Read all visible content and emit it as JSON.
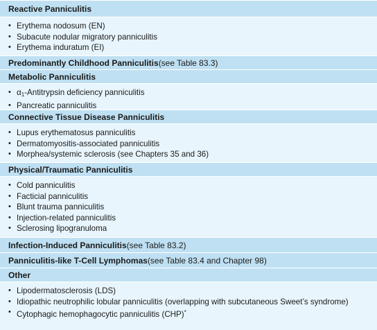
{
  "sections": [
    {
      "title": "Reactive Panniculitis",
      "note": "",
      "items": [
        "Erythema nodosum (EN)",
        "Subacute nodular migratory panniculitis",
        "Erythema induratum (EI)"
      ]
    },
    {
      "title": "Predominantly Childhood Panniculitis",
      "note": " (see Table 83.3)",
      "items": []
    },
    {
      "title": "Metabolic Panniculitis",
      "note": "",
      "items": [
        "α",
        "Pancreatic panniculitis"
      ],
      "alpha_item": {
        "greek": "α",
        "sub": "1",
        "text": "-Antitrypsin deficiency panniculitis"
      }
    },
    {
      "title": "Connective Tissue Disease Panniculitis",
      "note": "",
      "items": [
        "Lupus erythematosus panniculitis",
        "Dermatomyositis-associated panniculitis",
        "Morphea/systemic sclerosis (see Chapters 35 and 36)"
      ]
    },
    {
      "title": "Physical/Traumatic Panniculitis",
      "note": "",
      "items": [
        "Cold panniculitis",
        "Facticial panniculitis",
        "Blunt trauma panniculitis",
        "Injection-related panniculitis",
        "Sclerosing lipogranuloma"
      ]
    },
    {
      "title": "Infection-Induced Panniculitis",
      "note": " (see Table 83.2)",
      "items": []
    },
    {
      "title": "Panniculitis-like T-Cell Lymphomas",
      "note": " (see Table 83.4 and Chapter 98)",
      "items": []
    },
    {
      "title": "Other",
      "note": "",
      "items": [
        "Lipodermatosclerosis (LDS)",
        "Idiopathic neutrophilic lobular panniculitis (overlapping with subcutaneous Sweet’s syndrome)",
        "Cytophagic hemophagocytic panniculitis (CHP)"
      ],
      "chp_marker": "*"
    }
  ],
  "bullet_char": "•",
  "colors": {
    "header_bg": "#bfe0f2",
    "body_bg": "#e8f5fc",
    "text": "#1a1a1a"
  }
}
